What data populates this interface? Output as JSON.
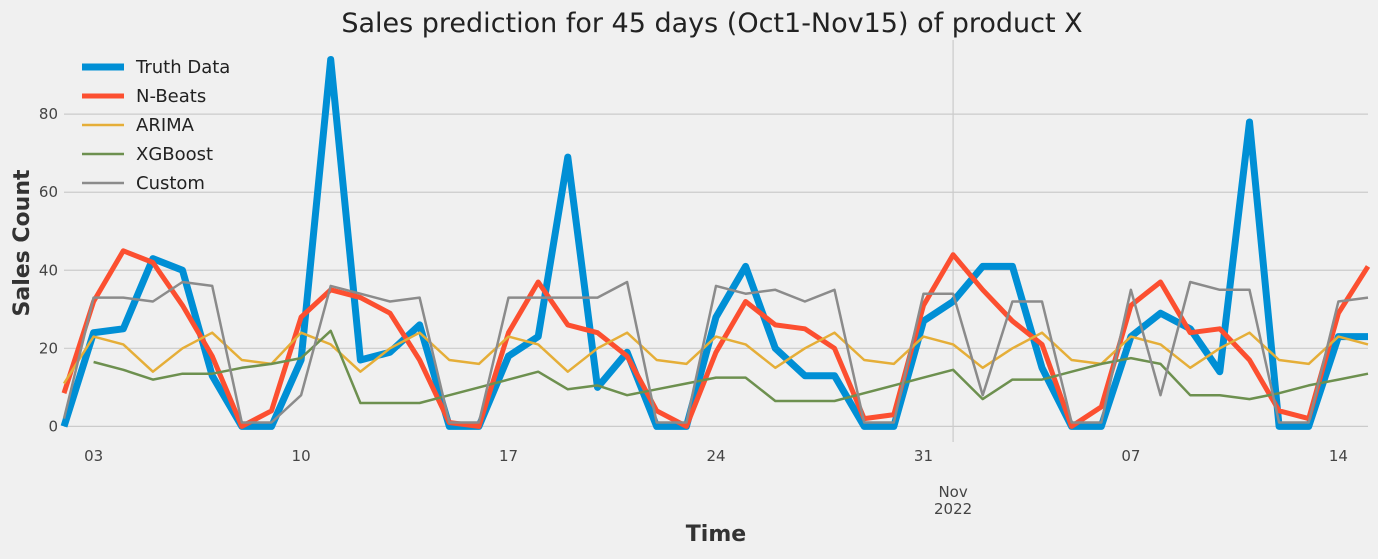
{
  "chart_data": {
    "type": "line",
    "title": "Sales prediction for 45 days (Oct1-Nov15) of product X",
    "xlabel": "Time",
    "ylabel": "Sales Count",
    "x": [
      "2022-10-02",
      "2022-10-03",
      "2022-10-04",
      "2022-10-05",
      "2022-10-06",
      "2022-10-07",
      "2022-10-08",
      "2022-10-09",
      "2022-10-10",
      "2022-10-11",
      "2022-10-12",
      "2022-10-13",
      "2022-10-14",
      "2022-10-15",
      "2022-10-16",
      "2022-10-17",
      "2022-10-18",
      "2022-10-19",
      "2022-10-20",
      "2022-10-21",
      "2022-10-22",
      "2022-10-23",
      "2022-10-24",
      "2022-10-25",
      "2022-10-26",
      "2022-10-27",
      "2022-10-28",
      "2022-10-29",
      "2022-10-30",
      "2022-10-31",
      "2022-11-01",
      "2022-11-02",
      "2022-11-03",
      "2022-11-04",
      "2022-11-05",
      "2022-11-06",
      "2022-11-07",
      "2022-11-08",
      "2022-11-09",
      "2022-11-10",
      "2022-11-11",
      "2022-11-12",
      "2022-11-13",
      "2022-11-14",
      "2022-11-15"
    ],
    "x_ticks": [
      {
        "date": "2022-10-03",
        "label": "03"
      },
      {
        "date": "2022-10-10",
        "label": "10"
      },
      {
        "date": "2022-10-17",
        "label": "17"
      },
      {
        "date": "2022-10-24",
        "label": "24"
      },
      {
        "date": "2022-10-31",
        "label": "31"
      },
      {
        "date": "2022-11-07",
        "label": "07"
      },
      {
        "date": "2022-11-14",
        "label": "14"
      }
    ],
    "x_major_tick": {
      "date": "2022-11-01",
      "label_line1": "Nov",
      "label_line2": "2022"
    },
    "y_ticks": [
      0,
      20,
      40,
      60,
      80
    ],
    "ylim": [
      -4,
      99
    ],
    "grid": true,
    "legend": "top-left",
    "series": [
      {
        "name": "Truth Data",
        "color": "#008fd5",
        "width": 7,
        "values": [
          0,
          24,
          25,
          43,
          40,
          13,
          0,
          0,
          17,
          94,
          17,
          19,
          26,
          0,
          0,
          18,
          23,
          69,
          10,
          19,
          0,
          0,
          28,
          41,
          20,
          13,
          13,
          0,
          0,
          27,
          32,
          41,
          41,
          15,
          0,
          0,
          23,
          29,
          25,
          14,
          78,
          0,
          0,
          23,
          23
        ]
      },
      {
        "name": "N-Beats",
        "color": "#fc4f30",
        "width": 5,
        "values": [
          8.5,
          32,
          45,
          42,
          31,
          18,
          0,
          4,
          28,
          35,
          33,
          29,
          17,
          1,
          0,
          24,
          37,
          26,
          24,
          18,
          4,
          0,
          19,
          32,
          26,
          25,
          20,
          2,
          3,
          31,
          44,
          35,
          27,
          21,
          0,
          5,
          31,
          37,
          24,
          25,
          17,
          4,
          2,
          29,
          41
        ]
      },
      {
        "name": "ARIMA",
        "color": "#e5ae38",
        "width": 2.5,
        "values": [
          11,
          23,
          21,
          14,
          20,
          24,
          17,
          16,
          24,
          21,
          14,
          20,
          24,
          17,
          16,
          23,
          21,
          14,
          20,
          24,
          17,
          16,
          23,
          21,
          15,
          20,
          24,
          17,
          16,
          23,
          21,
          15,
          20,
          24,
          17,
          16,
          23,
          21,
          15,
          20,
          24,
          17,
          16,
          23,
          21
        ]
      },
      {
        "name": "XGBoost",
        "color": "#6d904f",
        "width": 2.5,
        "values": [
          null,
          16.5,
          14.5,
          12,
          13.5,
          13.5,
          15,
          16,
          17.5,
          24.5,
          6,
          6,
          6,
          8,
          10,
          12,
          14,
          9.5,
          10.5,
          8,
          9.5,
          11,
          12.5,
          12.5,
          6.5,
          6.5,
          6.5,
          8.5,
          10.5,
          12.5,
          14.5,
          7,
          12,
          12,
          14,
          16,
          17.5,
          16,
          8,
          8,
          7,
          8.5,
          10.5,
          12,
          13.5
        ]
      },
      {
        "name": "Custom",
        "color": "#8b8b8b",
        "width": 2.5,
        "values": [
          2,
          33,
          33,
          32,
          37,
          36,
          1,
          1,
          8,
          36,
          34,
          32,
          33,
          1,
          1,
          33,
          33,
          33,
          33,
          37,
          1,
          1,
          36,
          34,
          35,
          32,
          35,
          1,
          1,
          34,
          34,
          8,
          32,
          32,
          1,
          1,
          35,
          8,
          37,
          35,
          35,
          1,
          1,
          32,
          33
        ]
      }
    ]
  }
}
